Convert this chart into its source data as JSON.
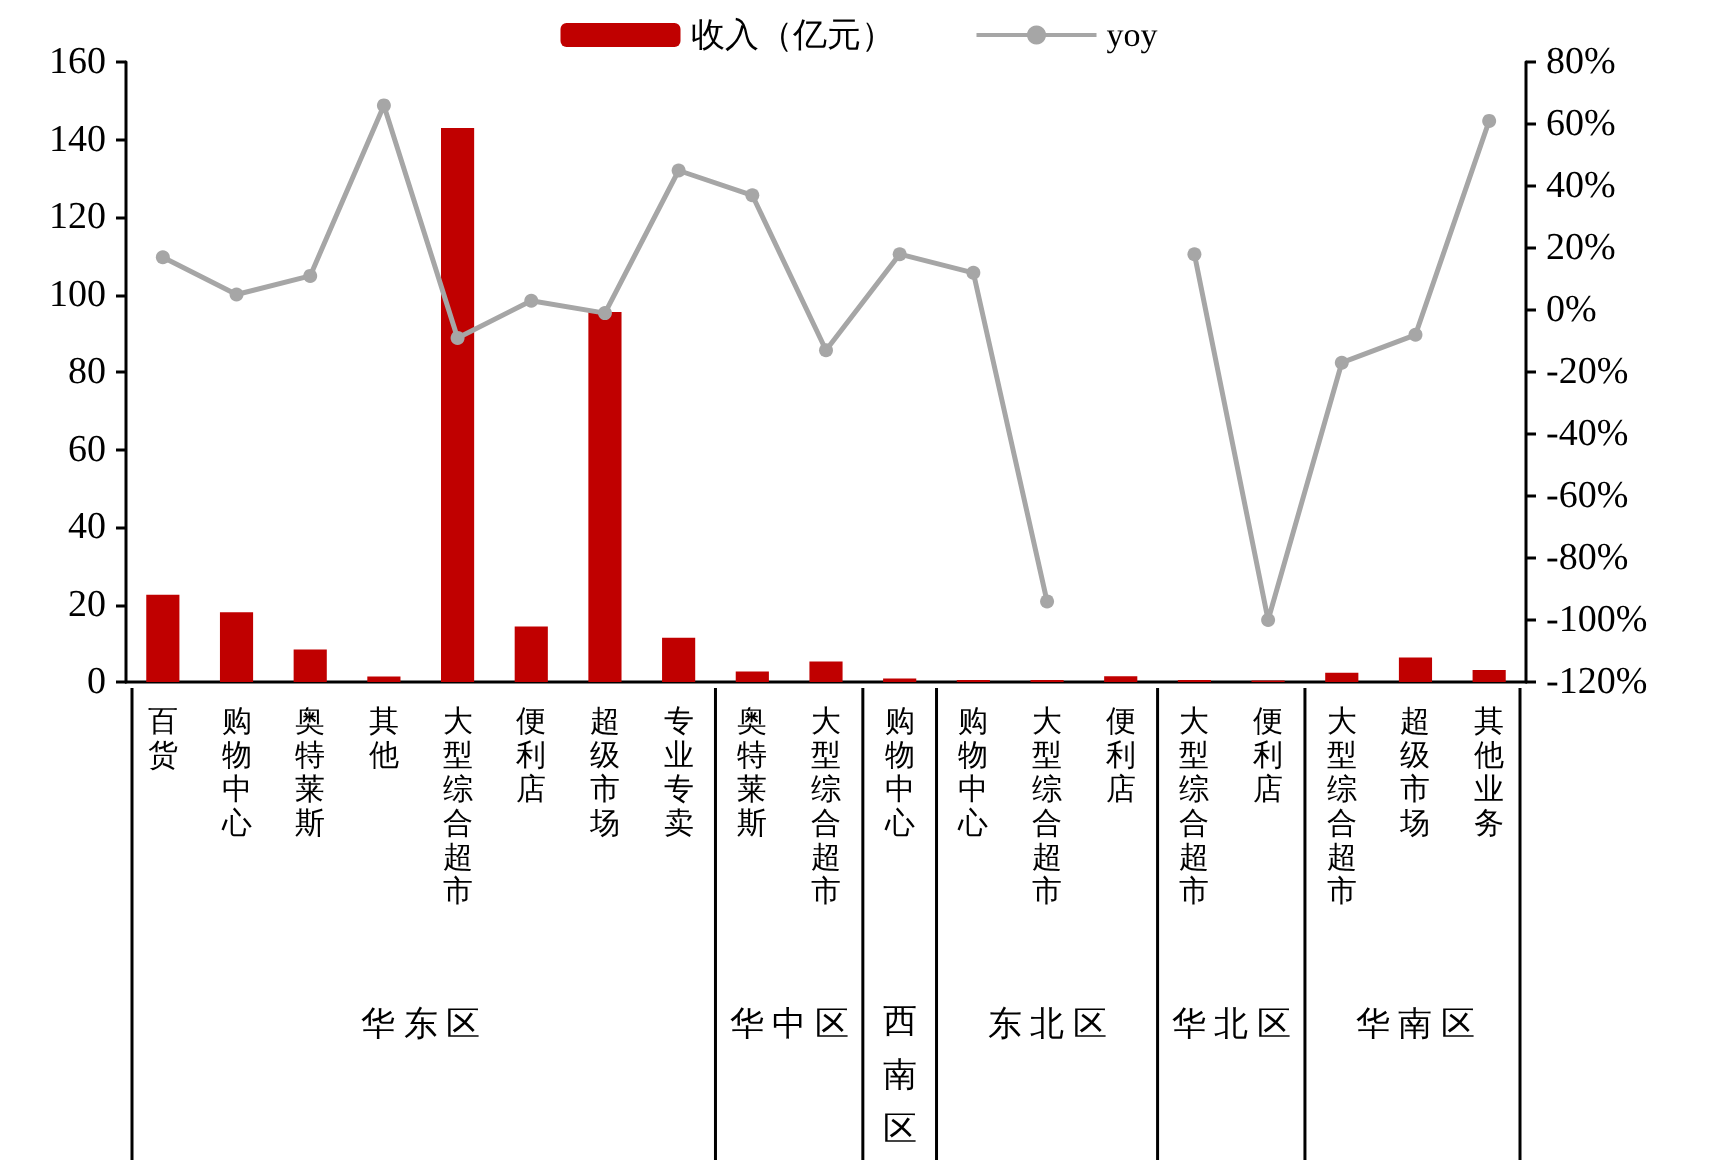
{
  "chart_data": {
    "type": "bar",
    "categories": [
      "百货",
      "购物中心",
      "奥特莱斯",
      "其他",
      "大型综合超市",
      "便利店",
      "超级市场",
      "专业专卖",
      "奥特莱斯",
      "大型综合超市",
      "购物中心",
      "购物中心",
      "大型综合超市",
      "便利店",
      "大型综合超市",
      "便利店",
      "大型综合超市",
      "超级市场",
      "其他业务"
    ],
    "series": [
      {
        "name": "收入（亿元）",
        "color": "#c00000",
        "values": [
          22.5,
          18,
          8.4,
          1.4,
          143,
          14.3,
          95.5,
          11.4,
          2.7,
          5.3,
          0.9,
          0.5,
          0.5,
          1.5,
          0.5,
          0.4,
          2.4,
          6.3,
          3.1
        ]
      },
      {
        "name": "yoy",
        "type": "line",
        "axis": "y2",
        "color": "#a6a6a6",
        "values": [
          17,
          5,
          11,
          66,
          -9,
          3,
          -1,
          45,
          37,
          -13,
          18,
          12,
          -94,
          null,
          18,
          -100,
          -17,
          -8,
          61
        ]
      }
    ],
    "ylim": [
      0,
      160
    ],
    "yticks": [
      0,
      20,
      40,
      60,
      80,
      100,
      120,
      140,
      160
    ],
    "y2lim": [
      -120,
      80
    ],
    "y2ticks": [
      {
        "value": -120,
        "label": "-120%"
      },
      {
        "value": -100,
        "label": "-100%"
      },
      {
        "value": -80,
        "label": "-80%"
      },
      {
        "value": -60,
        "label": "-60%"
      },
      {
        "value": -40,
        "label": "-40%"
      },
      {
        "value": -20,
        "label": "-20%"
      },
      {
        "value": 0,
        "label": "0%"
      },
      {
        "value": 20,
        "label": "20%"
      },
      {
        "value": 40,
        "label": "40%"
      },
      {
        "value": 60,
        "label": "60%"
      },
      {
        "value": 80,
        "label": "80%"
      }
    ],
    "annotations": [
      "华东区",
      "华中区",
      "西南区",
      "东北区",
      "华北区",
      "华南区"
    ],
    "legend": "top",
    "grid": false,
    "marker": "circle"
  }
}
